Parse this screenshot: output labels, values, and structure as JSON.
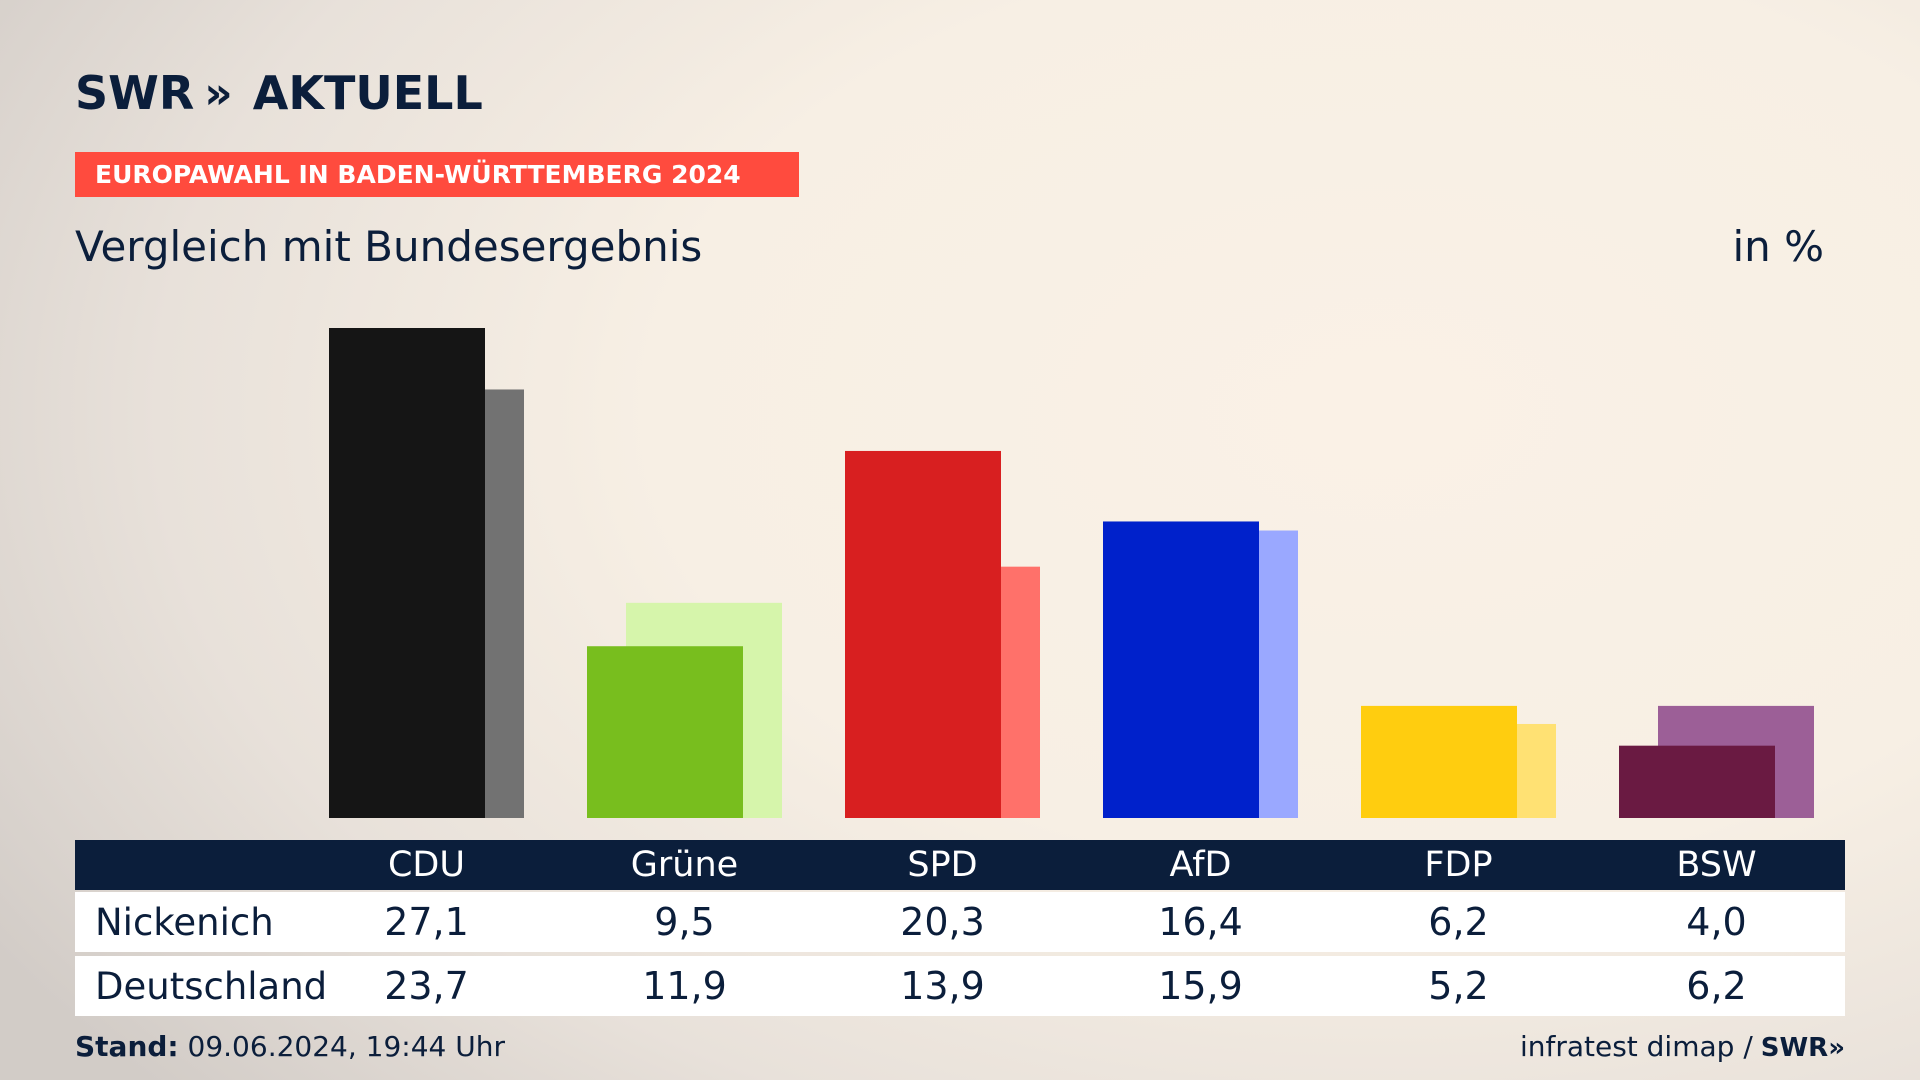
{
  "brand": {
    "logo_text": "SWR",
    "logo_chevrons": "»",
    "program": "AKTUELL"
  },
  "banner": "EUROPAWAHL IN BADEN-WÜRTTEMBERG 2024",
  "subtitle": "Vergleich mit Bundesergebnis",
  "unit": "in %",
  "table": {
    "row_labels": [
      "Nickenich",
      "Deutschland"
    ]
  },
  "footer": {
    "stand_label": "Stand:",
    "stand_value": "09.06.2024, 19:44 Uhr",
    "source": "infratest dimap /",
    "source_logo": "SWR»"
  },
  "chart_data": {
    "type": "bar",
    "categories": [
      "CDU",
      "Grüne",
      "SPD",
      "AfD",
      "FDP",
      "BSW"
    ],
    "series": [
      {
        "name": "Nickenich",
        "values": [
          27.1,
          9.5,
          20.3,
          16.4,
          6.2,
          4.0
        ],
        "display": [
          "27,1",
          "9,5",
          "20,3",
          "16,4",
          "6,2",
          "4,0"
        ]
      },
      {
        "name": "Deutschland",
        "values": [
          23.7,
          11.9,
          13.9,
          15.9,
          5.2,
          6.2
        ],
        "display": [
          "23,7",
          "11,9",
          "13,9",
          "15,9",
          "5,2",
          "6,2"
        ]
      }
    ],
    "colors_primary": [
      "#151515",
      "#78be1e",
      "#d81f20",
      "#0021cb",
      "#ffcd0f",
      "#6a1a42"
    ],
    "colors_secondary": [
      "#727272",
      "#d6f5ab",
      "#ff716a",
      "#9aa8ff",
      "#ffe173",
      "#9c5f97"
    ],
    "ylim": [
      0,
      27.1
    ]
  }
}
